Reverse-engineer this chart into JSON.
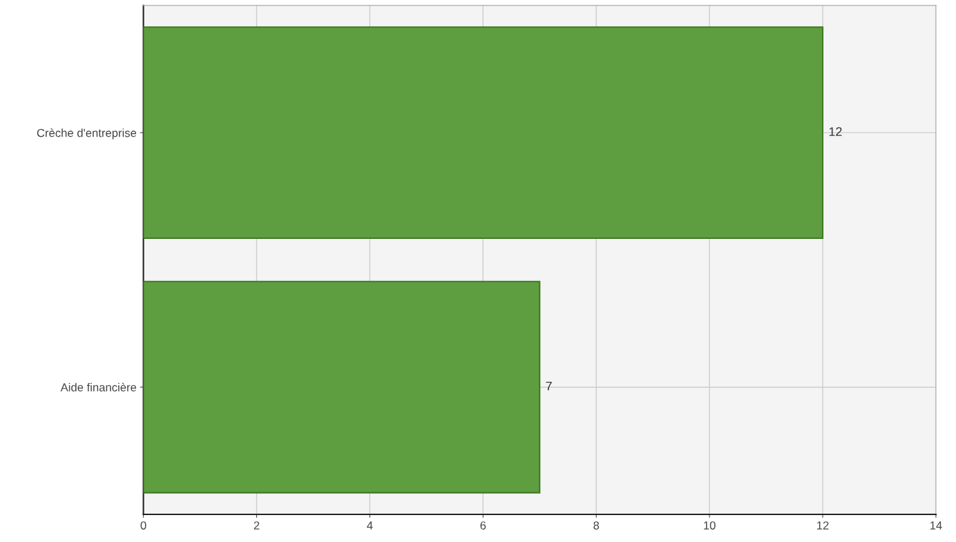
{
  "chart_data": {
    "type": "bar",
    "orientation": "horizontal",
    "categories": [
      "Crèche d'entreprise",
      "Aide financière"
    ],
    "values": [
      12,
      7
    ],
    "color": "#5e9e40",
    "xlim": [
      0,
      14
    ],
    "xticks": [
      0,
      2,
      4,
      6,
      8,
      10,
      12,
      14
    ],
    "grid": true,
    "data_labels": true
  }
}
